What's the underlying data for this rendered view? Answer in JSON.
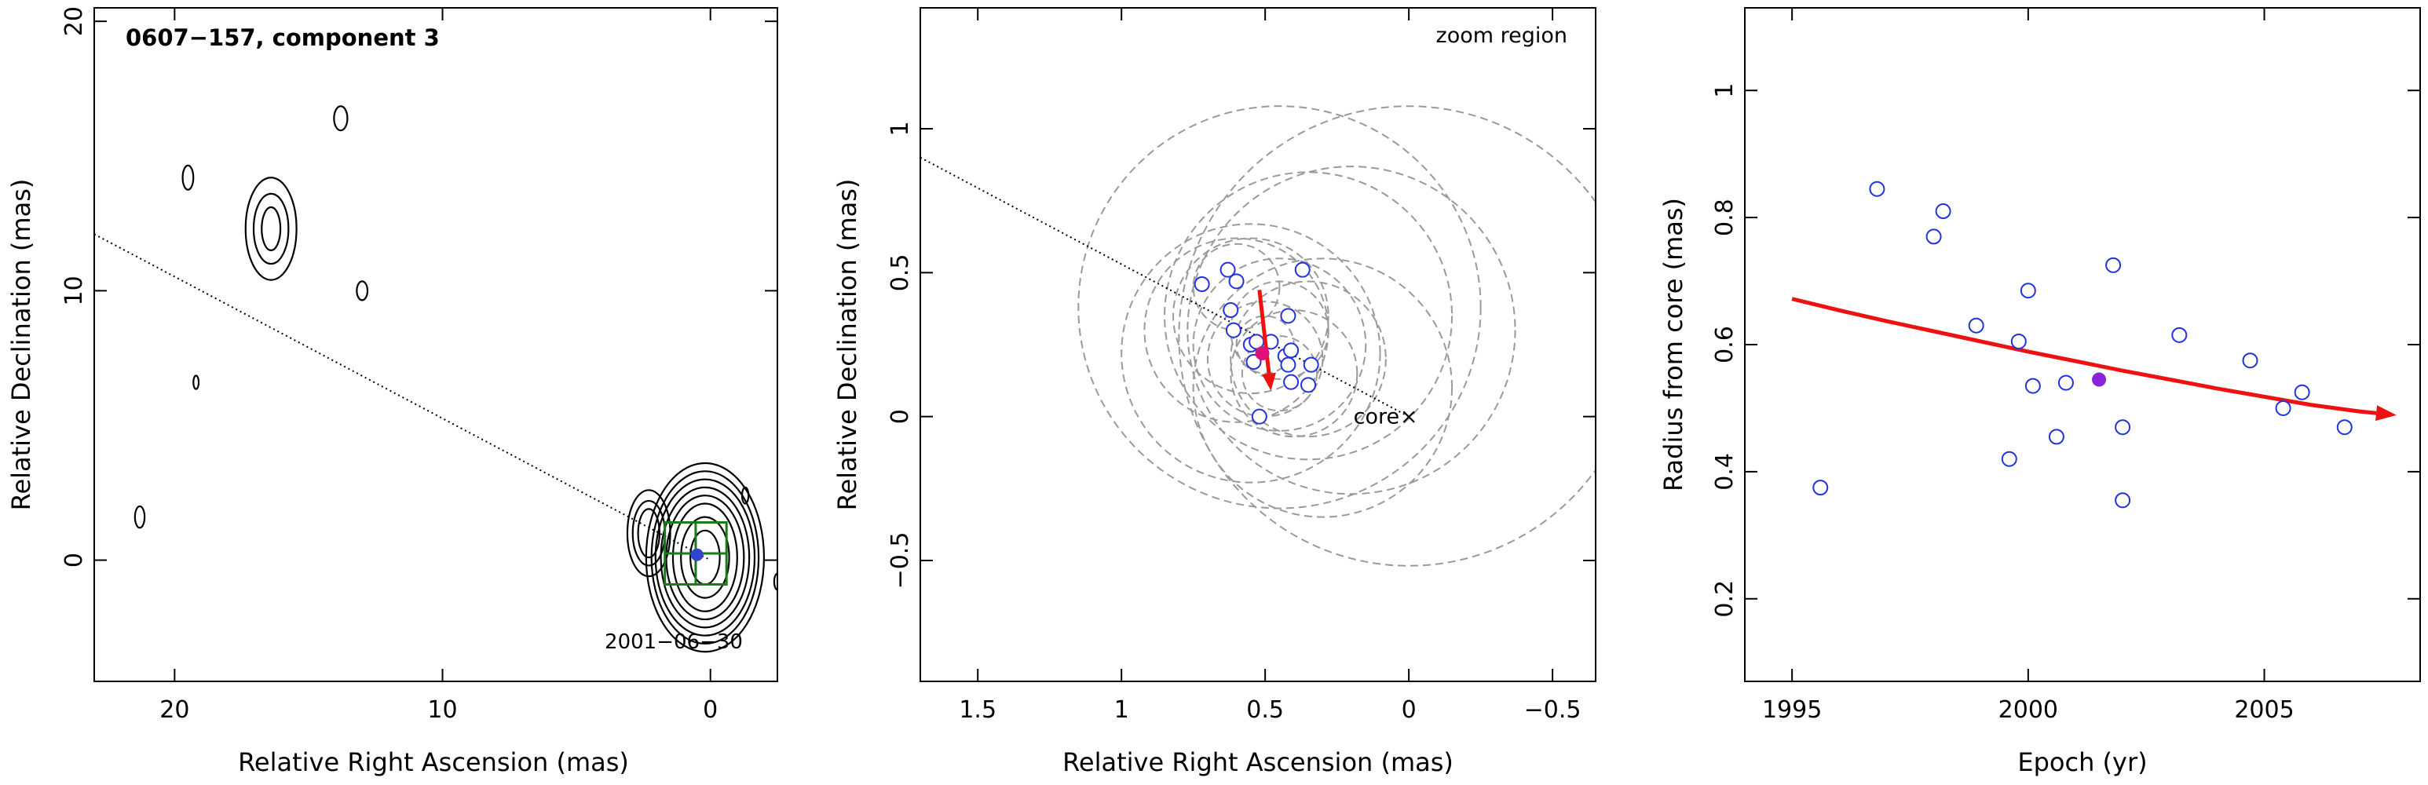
{
  "chart_data": [
    {
      "type": "contour",
      "title": "0607−157, component 3",
      "date_label": "2001−06−30",
      "xlabel": "Relative Right Ascension (mas)",
      "ylabel": "Relative Declination (mas)",
      "xlim": [
        23,
        -2.5
      ],
      "ylim": [
        -4.5,
        20.5
      ],
      "xticks": [
        20,
        10,
        0
      ],
      "yticks": [
        0,
        10,
        20
      ],
      "xtick_labels": [
        "20",
        "10",
        "0"
      ],
      "ytick_labels": [
        "0",
        "10",
        "20"
      ],
      "zoom_box": {
        "x": [
          1.7,
          -0.6
        ],
        "y": [
          -0.9,
          1.4
        ]
      },
      "component": {
        "x": 0.5,
        "y": 0.2
      },
      "direction_line": [
        [
          23,
          12.1
        ],
        [
          0,
          0
        ]
      ],
      "contour_groups": [
        {
          "name": "core",
          "cx": 0.2,
          "cy": 0.1,
          "rx": [
            0.55,
            0.9,
            1.2,
            1.45,
            1.65,
            1.85,
            2.0,
            2.2
          ],
          "ry": [
            1.0,
            1.5,
            2.0,
            2.3,
            2.6,
            2.9,
            3.2,
            3.5
          ]
        },
        {
          "name": "inner-jet",
          "cx": 2.3,
          "cy": 1.0,
          "rx": [
            0.4,
            0.6,
            0.8
          ],
          "ry": [
            0.9,
            1.2,
            1.6
          ]
        },
        {
          "name": "blob-16-13",
          "cx": 16.4,
          "cy": 12.3,
          "rx": [
            0.35,
            0.65,
            0.95
          ],
          "ry": [
            0.8,
            1.3,
            1.9
          ]
        },
        {
          "name": "blob-13.8-16.4",
          "cx": 13.8,
          "cy": 16.4,
          "rx": [
            0.25
          ],
          "ry": [
            0.45
          ]
        },
        {
          "name": "blob-19.5-14.2",
          "cx": 19.5,
          "cy": 14.2,
          "rx": [
            0.2
          ],
          "ry": [
            0.45
          ]
        },
        {
          "name": "blob-13-10",
          "cx": 13.0,
          "cy": 10.0,
          "rx": [
            0.2
          ],
          "ry": [
            0.35
          ]
        },
        {
          "name": "blob-21.3-1.6",
          "cx": 21.3,
          "cy": 1.6,
          "rx": [
            0.18
          ],
          "ry": [
            0.4
          ]
        },
        {
          "name": "blob-19.2-6.6",
          "cx": 19.2,
          "cy": 6.6,
          "rx": [
            0.1
          ],
          "ry": [
            0.25
          ]
        },
        {
          "name": "blob--2.5--0.8",
          "cx": -2.5,
          "cy": -0.8,
          "rx": [
            0.12
          ],
          "ry": [
            0.3
          ]
        },
        {
          "name": "blob--1.3-2.4",
          "cx": -1.3,
          "cy": 2.4,
          "rx": [
            0.12
          ],
          "ry": [
            0.3
          ]
        }
      ]
    },
    {
      "type": "scatter",
      "title": "zoom region",
      "xlabel": "Relative Right Ascension (mas)",
      "ylabel": "Relative Declination (mas)",
      "xlim": [
        1.7,
        -0.65
      ],
      "ylim": [
        -0.92,
        1.42
      ],
      "xticks": [
        1.5,
        1,
        0.5,
        0,
        -0.5
      ],
      "yticks": [
        -0.5,
        0,
        0.5,
        1
      ],
      "xtick_labels": [
        "1.5",
        "1",
        "0.5",
        "0",
        "−0.5"
      ],
      "ytick_labels": [
        "−0.5",
        "0",
        "0.5",
        "1"
      ],
      "core_label": "core",
      "core_marker": "×",
      "core": {
        "x": 0,
        "y": 0
      },
      "direction_line": [
        [
          1.7,
          0.9
        ],
        [
          0,
          0
        ]
      ],
      "points": [
        {
          "x": 0.72,
          "y": 0.46
        },
        {
          "x": 0.63,
          "y": 0.51
        },
        {
          "x": 0.6,
          "y": 0.47
        },
        {
          "x": 0.62,
          "y": 0.37
        },
        {
          "x": 0.61,
          "y": 0.3
        },
        {
          "x": 0.55,
          "y": 0.25
        },
        {
          "x": 0.53,
          "y": 0.26
        },
        {
          "x": 0.54,
          "y": 0.19
        },
        {
          "x": 0.37,
          "y": 0.51
        },
        {
          "x": 0.42,
          "y": 0.35
        },
        {
          "x": 0.48,
          "y": 0.26
        },
        {
          "x": 0.43,
          "y": 0.21
        },
        {
          "x": 0.42,
          "y": 0.18
        },
        {
          "x": 0.41,
          "y": 0.23
        },
        {
          "x": 0.41,
          "y": 0.12
        },
        {
          "x": 0.34,
          "y": 0.18
        },
        {
          "x": 0.35,
          "y": 0.11
        },
        {
          "x": 0.52,
          "y": 0.0
        }
      ],
      "highlight": {
        "x": 0.51,
        "y": 0.22
      },
      "velocity_arrow": {
        "from": [
          0.52,
          0.44
        ],
        "to": [
          0.48,
          0.09
        ]
      },
      "error_circles": [
        {
          "x": 0.0,
          "y": 0.28,
          "r": 0.8
        },
        {
          "x": 0.45,
          "y": 0.38,
          "r": 0.7
        },
        {
          "x": 0.2,
          "y": 0.3,
          "r": 0.57
        },
        {
          "x": 0.35,
          "y": 0.35,
          "r": 0.5
        },
        {
          "x": 0.55,
          "y": 0.22,
          "r": 0.45
        },
        {
          "x": 0.3,
          "y": 0.1,
          "r": 0.45
        },
        {
          "x": 0.6,
          "y": 0.3,
          "r": 0.32
        },
        {
          "x": 0.45,
          "y": 0.25,
          "r": 0.3
        },
        {
          "x": 0.35,
          "y": 0.2,
          "r": 0.27
        },
        {
          "x": 0.55,
          "y": 0.35,
          "r": 0.27
        },
        {
          "x": 0.4,
          "y": 0.15,
          "r": 0.22
        },
        {
          "x": 0.5,
          "y": 0.2,
          "r": 0.2
        },
        {
          "x": 0.45,
          "y": 0.3,
          "r": 0.17
        },
        {
          "x": 0.6,
          "y": 0.45,
          "r": 0.15
        },
        {
          "x": 0.45,
          "y": 0.15,
          "r": 0.13
        },
        {
          "x": 0.5,
          "y": 0.25,
          "r": 0.1
        }
      ]
    },
    {
      "type": "scatter",
      "xlabel": "Epoch (yr)",
      "ylabel": "Radius from core (mas)",
      "xlim": [
        1994.0,
        2008.3
      ],
      "ylim": [
        0.07,
        1.13
      ],
      "xticks": [
        1995,
        2000,
        2005
      ],
      "yticks": [
        0.2,
        0.4,
        0.6,
        0.8,
        1
      ],
      "xtick_labels": [
        "1995",
        "2000",
        "2005"
      ],
      "ytick_labels": [
        "0.2",
        "0.4",
        "0.6",
        "0.8",
        "1"
      ],
      "points": [
        {
          "x": 1995.6,
          "y": 0.375
        },
        {
          "x": 1996.8,
          "y": 0.845
        },
        {
          "x": 1998.0,
          "y": 0.77
        },
        {
          "x": 1998.2,
          "y": 0.81
        },
        {
          "x": 1998.9,
          "y": 0.63
        },
        {
          "x": 1999.6,
          "y": 0.42
        },
        {
          "x": 1999.8,
          "y": 0.605
        },
        {
          "x": 2000.0,
          "y": 0.685
        },
        {
          "x": 2000.1,
          "y": 0.535
        },
        {
          "x": 2000.6,
          "y": 0.455
        },
        {
          "x": 2000.8,
          "y": 0.54
        },
        {
          "x": 2001.8,
          "y": 0.725
        },
        {
          "x": 2002.0,
          "y": 0.47
        },
        {
          "x": 2002.0,
          "y": 0.355
        },
        {
          "x": 2003.2,
          "y": 0.615
        },
        {
          "x": 2004.7,
          "y": 0.575
        },
        {
          "x": 2005.4,
          "y": 0.5
        },
        {
          "x": 2005.8,
          "y": 0.525
        },
        {
          "x": 2006.7,
          "y": 0.47
        }
      ],
      "highlight": {
        "x": 2001.5,
        "y": 0.545
      },
      "fit_curve": [
        [
          1995.0,
          0.672
        ],
        [
          1996.0,
          0.654
        ],
        [
          1997.0,
          0.637
        ],
        [
          1998.0,
          0.621
        ],
        [
          1999.0,
          0.605
        ],
        [
          2000.0,
          0.589
        ],
        [
          2001.0,
          0.574
        ],
        [
          2002.0,
          0.559
        ],
        [
          2003.0,
          0.545
        ],
        [
          2004.0,
          0.531
        ],
        [
          2005.0,
          0.518
        ],
        [
          2006.0,
          0.505
        ],
        [
          2007.0,
          0.495
        ],
        [
          2007.8,
          0.489
        ]
      ]
    }
  ]
}
